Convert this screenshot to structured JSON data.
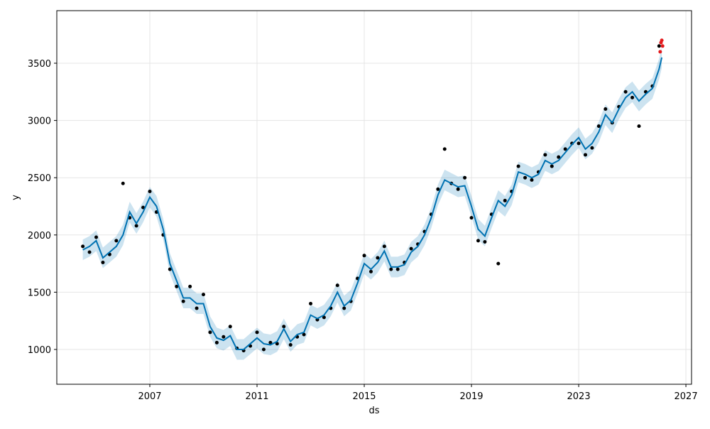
{
  "chart_data": {
    "type": "forecast",
    "xlabel": "ds",
    "ylabel": "y",
    "xlim": [
      2003.53,
      2027.21
    ],
    "ylim": [
      696,
      3959
    ],
    "xticks": [
      2007,
      2011,
      2015,
      2019,
      2023,
      2027
    ],
    "yticks": [
      1000,
      1500,
      2000,
      2500,
      3000,
      3500
    ],
    "grid": true,
    "point_color": "#000000",
    "line_color": "#0072B2",
    "band_color": "#0072B2",
    "recent_color": "#e31a1c",
    "ds": [
      2004.5,
      2004.75,
      2005,
      2005.25,
      2005.5,
      2005.75,
      2006,
      2006.25,
      2006.5,
      2006.75,
      2007,
      2007.25,
      2007.5,
      2007.75,
      2008,
      2008.25,
      2008.5,
      2008.75,
      2009,
      2009.25,
      2009.5,
      2009.75,
      2010,
      2010.25,
      2010.5,
      2010.75,
      2011,
      2011.25,
      2011.5,
      2011.75,
      2012,
      2012.25,
      2012.5,
      2012.75,
      2013,
      2013.25,
      2013.5,
      2013.75,
      2014,
      2014.25,
      2014.5,
      2014.75,
      2015,
      2015.25,
      2015.5,
      2015.75,
      2016,
      2016.25,
      2016.5,
      2016.75,
      2017,
      2017.25,
      2017.5,
      2017.75,
      2018,
      2018.25,
      2018.5,
      2018.75,
      2019,
      2019.25,
      2019.5,
      2019.75,
      2020,
      2020.25,
      2020.5,
      2020.75,
      2021,
      2021.25,
      2021.5,
      2021.75,
      2022,
      2022.25,
      2022.5,
      2022.75,
      2023,
      2023.25,
      2023.5,
      2023.75,
      2024,
      2024.25,
      2024.5,
      2024.75,
      2025,
      2025.25,
      2025.5,
      2025.75,
      2026,
      2026.1
    ],
    "y": [
      1900,
      1850,
      1980,
      1760,
      1830,
      1950,
      2450,
      2150,
      2080,
      2240,
      2380,
      2200,
      2000,
      1700,
      1550,
      1420,
      1550,
      1360,
      1480,
      1150,
      1060,
      1110,
      1200,
      1010,
      990,
      1030,
      1150,
      1000,
      1060,
      1050,
      1200,
      1040,
      1110,
      1130,
      1400,
      1260,
      1280,
      1360,
      1560,
      1360,
      1420,
      1620,
      1820,
      1680,
      1800,
      1900,
      1700,
      1700,
      1760,
      1880,
      1920,
      2030,
      2180,
      2400,
      2750,
      2450,
      2400,
      2500,
      2150,
      1950,
      1940,
      2180,
      1750,
      2300,
      2380,
      2600,
      2500,
      2480,
      2550,
      2700,
      2600,
      2680,
      2750,
      2800,
      2800,
      2700,
      2760,
      2950,
      3100,
      2980,
      3120,
      3250,
      3200,
      2950,
      3250,
      3300,
      3650,
      null
    ],
    "yhat": [
      1870,
      1900,
      1950,
      1800,
      1850,
      1900,
      2000,
      2200,
      2100,
      2200,
      2330,
      2250,
      2050,
      1750,
      1600,
      1450,
      1450,
      1400,
      1400,
      1200,
      1100,
      1080,
      1120,
      1000,
      1000,
      1050,
      1100,
      1050,
      1040,
      1070,
      1180,
      1070,
      1130,
      1150,
      1300,
      1270,
      1300,
      1380,
      1500,
      1380,
      1430,
      1580,
      1750,
      1700,
      1760,
      1860,
      1720,
      1720,
      1740,
      1850,
      1900,
      2000,
      2150,
      2350,
      2480,
      2450,
      2420,
      2430,
      2250,
      2050,
      1990,
      2150,
      2300,
      2250,
      2350,
      2550,
      2530,
      2500,
      2530,
      2650,
      2620,
      2650,
      2720,
      2790,
      2850,
      2750,
      2800,
      2900,
      3050,
      2980,
      3100,
      3200,
      3250,
      3170,
      3230,
      3280,
      3450,
      3550
    ],
    "yhat_lower": [
      1780,
      1810,
      1860,
      1710,
      1760,
      1810,
      1910,
      2110,
      2010,
      2110,
      2240,
      2160,
      1960,
      1660,
      1510,
      1360,
      1360,
      1310,
      1310,
      1110,
      1010,
      990,
      1030,
      910,
      910,
      960,
      1010,
      960,
      950,
      980,
      1090,
      980,
      1040,
      1060,
      1210,
      1180,
      1210,
      1290,
      1410,
      1290,
      1340,
      1490,
      1660,
      1610,
      1670,
      1770,
      1630,
      1630,
      1650,
      1760,
      1810,
      1910,
      2060,
      2260,
      2390,
      2360,
      2330,
      2340,
      2160,
      1960,
      1900,
      2060,
      2210,
      2160,
      2260,
      2460,
      2440,
      2410,
      2440,
      2560,
      2530,
      2560,
      2630,
      2700,
      2760,
      2660,
      2710,
      2810,
      2960,
      2890,
      3010,
      3110,
      3160,
      3080,
      3140,
      3190,
      3360,
      3460
    ],
    "yhat_upper": [
      1960,
      1990,
      2040,
      1890,
      1940,
      1990,
      2090,
      2290,
      2190,
      2290,
      2420,
      2340,
      2140,
      1840,
      1690,
      1540,
      1540,
      1490,
      1490,
      1290,
      1190,
      1170,
      1210,
      1090,
      1090,
      1140,
      1190,
      1140,
      1130,
      1160,
      1270,
      1160,
      1220,
      1240,
      1390,
      1360,
      1390,
      1470,
      1590,
      1470,
      1520,
      1670,
      1840,
      1790,
      1850,
      1950,
      1810,
      1810,
      1830,
      1940,
      1990,
      2090,
      2240,
      2440,
      2570,
      2540,
      2510,
      2520,
      2340,
      2140,
      2080,
      2240,
      2390,
      2340,
      2440,
      2640,
      2620,
      2590,
      2620,
      2740,
      2710,
      2740,
      2810,
      2880,
      2940,
      2840,
      2890,
      2990,
      3140,
      3070,
      3190,
      3290,
      3340,
      3260,
      3320,
      3370,
      3540,
      3640
    ],
    "recent": {
      "x": [
        2026.04,
        2026.07,
        2026.1,
        2026.13
      ],
      "y": [
        3600,
        3680,
        3700,
        3650
      ]
    }
  }
}
